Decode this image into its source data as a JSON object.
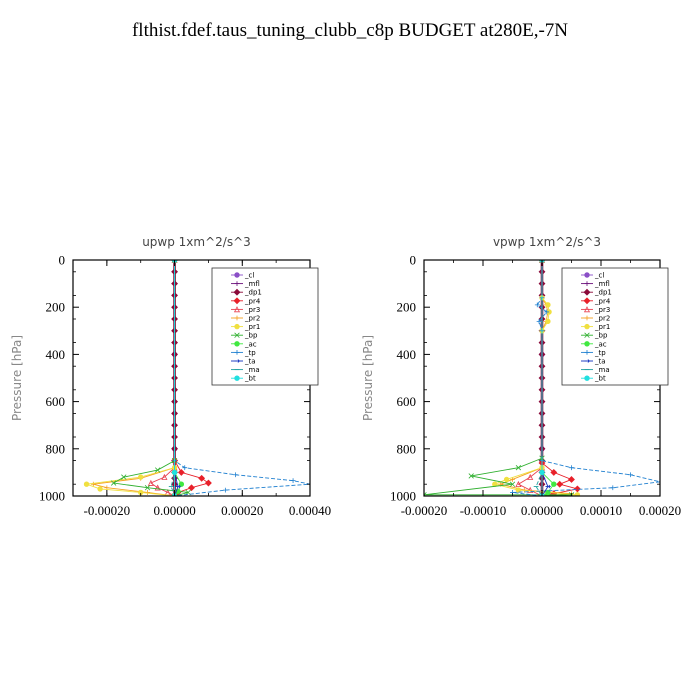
{
  "title": "flthist.fdef.taus_tuning_clubb_c8p  BUDGET at280E,-7N",
  "chart_data": [
    {
      "type": "line",
      "title": "upwp   1xm^2/s^3",
      "xlabel": "",
      "ylabel": "Pressure [hPa]",
      "xlim": [
        -0.0003,
        0.0004
      ],
      "ylim": [
        1000,
        0
      ],
      "xticks": [
        "-0.00020",
        "0.00000",
        "0.00020",
        "0.00040"
      ],
      "xtick_values": [
        -0.0002,
        0.0,
        0.0002,
        0.0004
      ],
      "yticks": [
        "0",
        "200",
        "400",
        "600",
        "800",
        "1000"
      ],
      "ytick_values": [
        0,
        200,
        400,
        600,
        800,
        1000
      ],
      "legend_position": "top-right",
      "series": [
        {
          "name": "_cl",
          "color": "#8a4fc7",
          "marker": "circle",
          "x": [
            0,
            0,
            0,
            0
          ],
          "y": [
            0,
            400,
            800,
            1000
          ]
        },
        {
          "name": "_mfl",
          "color": "#6a0f7a",
          "marker": "plus",
          "x": [
            0,
            0,
            0,
            0
          ],
          "y": [
            0,
            400,
            800,
            1000
          ]
        },
        {
          "name": "_dp1",
          "color": "#8b0a3a",
          "marker": "diamond",
          "x": [
            0,
            0,
            0,
            0,
            0,
            0,
            0,
            0,
            0,
            0,
            0,
            0,
            0,
            0,
            0,
            0,
            0,
            0,
            0,
            0,
            0,
            0
          ],
          "y": [
            0,
            50,
            100,
            150,
            200,
            250,
            300,
            350,
            400,
            450,
            500,
            550,
            600,
            650,
            700,
            750,
            800,
            850,
            900,
            925,
            950,
            1000
          ]
        },
        {
          "name": "_pr4",
          "color": "#e8202a",
          "marker": "diamond",
          "x": [
            0,
            0,
            2e-05,
            8e-05,
            0.0001,
            5e-05,
            1e-05,
            0
          ],
          "y": [
            0,
            850,
            900,
            925,
            945,
            965,
            985,
            1000
          ]
        },
        {
          "name": "_pr3",
          "color": "#e84050",
          "marker": "triangle",
          "x": [
            0,
            0,
            -3e-05,
            -7e-05,
            -5e-05,
            -2e-05,
            0
          ],
          "y": [
            0,
            880,
            920,
            945,
            965,
            985,
            1000
          ]
        },
        {
          "name": "_pr2",
          "color": "#f5a020",
          "marker": "plus",
          "x": [
            0,
            0,
            -0.0001,
            -0.00024,
            -0.0002,
            -8e-05,
            0
          ],
          "y": [
            0,
            880,
            925,
            950,
            965,
            985,
            1000
          ]
        },
        {
          "name": "_pr1",
          "color": "#f0e040",
          "marker": "circle",
          "x": [
            0,
            0,
            -0.0001,
            -0.00026,
            -0.00022,
            -0.0001,
            0
          ],
          "y": [
            0,
            880,
            920,
            950,
            970,
            985,
            1000
          ]
        },
        {
          "name": "_bp",
          "color": "#30b030",
          "marker": "cross",
          "x": [
            0,
            0,
            -5e-05,
            -0.00015,
            -0.00018,
            -8e-05,
            4e-05,
            0
          ],
          "y": [
            0,
            850,
            890,
            920,
            945,
            965,
            985,
            1000
          ]
        },
        {
          "name": "_ac",
          "color": "#40e840",
          "marker": "circle",
          "x": [
            0,
            0,
            2e-05,
            1e-05,
            0
          ],
          "y": [
            0,
            900,
            950,
            980,
            1000
          ]
        },
        {
          "name": "_tp",
          "color": "#2080d0",
          "marker": "plus",
          "x": [
            0,
            0,
            3e-05,
            0.00018,
            0.00035,
            0.0004,
            0.00015,
            0
          ],
          "y": [
            0,
            850,
            880,
            910,
            935,
            950,
            975,
            1000
          ]
        },
        {
          "name": "_ta",
          "color": "#1030c0",
          "marker": "arrow",
          "x": [
            0,
            0,
            1e-05,
            0
          ],
          "y": [
            0,
            900,
            960,
            1000
          ]
        },
        {
          "name": "_ma",
          "color": "#20a0a0",
          "marker": "dash",
          "x": [
            0,
            0,
            -1e-05,
            0
          ],
          "y": [
            0,
            900,
            960,
            1000
          ]
        },
        {
          "name": "_bt",
          "color": "#20e0e0",
          "marker": "circle",
          "x": [
            0,
            0,
            0
          ],
          "y": [
            0,
            900,
            1000
          ]
        }
      ]
    },
    {
      "type": "line",
      "title": "vpwp   1xm^2/s^3",
      "xlabel": "",
      "ylabel": "Pressure [hPa]",
      "xlim": [
        -0.0002,
        0.0002
      ],
      "ylim": [
        1000,
        0
      ],
      "xticks": [
        "-0.00020",
        "-0.00010",
        "0.00000",
        "0.00010",
        "0.00020"
      ],
      "xtick_values": [
        -0.0002,
        -0.0001,
        0.0,
        0.0001,
        0.0002
      ],
      "yticks": [
        "0",
        "200",
        "400",
        "600",
        "800",
        "1000"
      ],
      "ytick_values": [
        0,
        200,
        400,
        600,
        800,
        1000
      ],
      "legend_position": "top-right",
      "series": [
        {
          "name": "_cl",
          "color": "#8a4fc7",
          "marker": "circle",
          "x": [
            0,
            0,
            0,
            0
          ],
          "y": [
            0,
            400,
            800,
            1000
          ]
        },
        {
          "name": "_mfl",
          "color": "#6a0f7a",
          "marker": "plus",
          "x": [
            0,
            0,
            0,
            0
          ],
          "y": [
            0,
            400,
            800,
            1000
          ]
        },
        {
          "name": "_dp1",
          "color": "#8b0a3a",
          "marker": "diamond",
          "x": [
            0,
            0,
            0,
            0,
            0,
            0,
            0,
            0,
            0,
            0,
            0,
            0,
            0,
            0,
            0,
            0,
            0,
            0,
            0,
            0,
            0,
            0
          ],
          "y": [
            0,
            50,
            100,
            150,
            200,
            250,
            300,
            350,
            400,
            450,
            500,
            550,
            600,
            650,
            700,
            750,
            800,
            850,
            900,
            925,
            950,
            1000
          ]
        },
        {
          "name": "_pr4",
          "color": "#e8202a",
          "marker": "diamond",
          "x": [
            0,
            0,
            2e-05,
            5e-05,
            3e-05,
            6e-05,
            2e-05,
            0
          ],
          "y": [
            0,
            860,
            900,
            930,
            950,
            970,
            990,
            1000
          ]
        },
        {
          "name": "_pr3",
          "color": "#e84050",
          "marker": "triangle",
          "x": [
            0,
            0,
            -2e-05,
            -4e-05,
            -2e-05,
            0
          ],
          "y": [
            0,
            880,
            920,
            950,
            975,
            1000
          ]
        },
        {
          "name": "_pr2",
          "color": "#f5a020",
          "marker": "plus",
          "x": [
            0,
            0,
            7e-06,
            1e-05,
            7e-06,
            0,
            0,
            -5e-05,
            -7e-05,
            -3e-05,
            5e-05,
            0
          ],
          "y": [
            0,
            160,
            190,
            220,
            260,
            300,
            880,
            930,
            950,
            975,
            990,
            1000
          ]
        },
        {
          "name": "_pr1",
          "color": "#f0e040",
          "marker": "circle",
          "x": [
            0,
            0,
            1e-05,
            1.2e-05,
            1e-05,
            0,
            0,
            -6e-05,
            -8e-05,
            -4e-05,
            6e-05,
            0
          ],
          "y": [
            0,
            160,
            190,
            220,
            260,
            300,
            880,
            930,
            950,
            975,
            995,
            1000
          ]
        },
        {
          "name": "_bp",
          "color": "#30b030",
          "marker": "cross",
          "x": [
            0,
            0,
            -4e-05,
            -0.00012,
            -5e-05,
            -0.0002,
            5e-05,
            0
          ],
          "y": [
            0,
            840,
            880,
            915,
            950,
            995,
            995,
            1000
          ]
        },
        {
          "name": "_ac",
          "color": "#40e840",
          "marker": "circle",
          "x": [
            0,
            0,
            2e-05,
            1e-05,
            0
          ],
          "y": [
            0,
            900,
            950,
            985,
            1000
          ]
        },
        {
          "name": "_tp",
          "color": "#2080d0",
          "marker": "plus",
          "x": [
            0,
            0,
            -8e-06,
            8e-06,
            -5e-06,
            0,
            0,
            5e-05,
            0.00015,
            0.0002,
            0.00012,
            -5e-05,
            0
          ],
          "y": [
            0,
            160,
            190,
            220,
            260,
            300,
            850,
            880,
            910,
            940,
            965,
            985,
            1000
          ]
        },
        {
          "name": "_ta",
          "color": "#1030c0",
          "marker": "arrow",
          "x": [
            0,
            0,
            1e-05,
            0
          ],
          "y": [
            0,
            900,
            960,
            1000
          ]
        },
        {
          "name": "_ma",
          "color": "#20a0a0",
          "marker": "dash",
          "x": [
            0,
            0,
            -1e-05,
            0
          ],
          "y": [
            0,
            900,
            960,
            1000
          ]
        },
        {
          "name": "_bt",
          "color": "#20e0e0",
          "marker": "circle",
          "x": [
            0,
            0,
            0
          ],
          "y": [
            0,
            900,
            1000
          ]
        }
      ]
    }
  ]
}
